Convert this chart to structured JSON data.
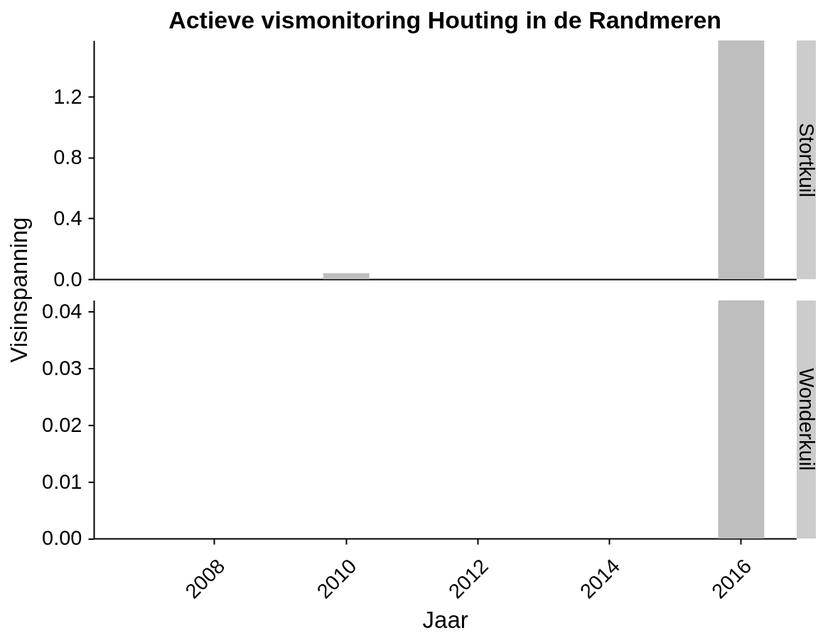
{
  "chart_data": [
    {
      "type": "bar",
      "title": "Actieve vismonitoring Houting in de Randmeren",
      "ylabel": "Visinspanning",
      "categories": [
        null,
        "2008",
        null,
        "2010",
        null,
        "2012",
        null,
        "2014",
        null,
        "2016"
      ],
      "series": [
        {
          "name": "Stortkuil",
          "color": "#bebebe",
          "values": [
            null,
            null,
            null,
            0.04,
            null,
            null,
            null,
            null,
            null,
            1.57
          ]
        }
      ],
      "ylim": [
        0,
        1.57
      ],
      "yticks": [
        {
          "value": 0,
          "label": "0.0"
        },
        0.4,
        0.8,
        1.2
      ],
      "tick_labels": "y"
    },
    {
      "type": "bar",
      "xlabel": "Jaar",
      "categories": [
        null,
        "2008",
        null,
        "2010",
        null,
        "2012",
        null,
        "2014",
        null,
        "2016"
      ],
      "series": [
        {
          "name": "Wonderkuil",
          "color": "#bebebe",
          "values": [
            null,
            null,
            null,
            null,
            null,
            null,
            null,
            null,
            null,
            0.042
          ]
        }
      ],
      "ylim": [
        0,
        0.042
      ],
      "yticks": [
        {
          "value": 0,
          "label": "0.00"
        },
        0.01,
        0.02,
        0.03,
        0.04
      ]
    }
  ]
}
